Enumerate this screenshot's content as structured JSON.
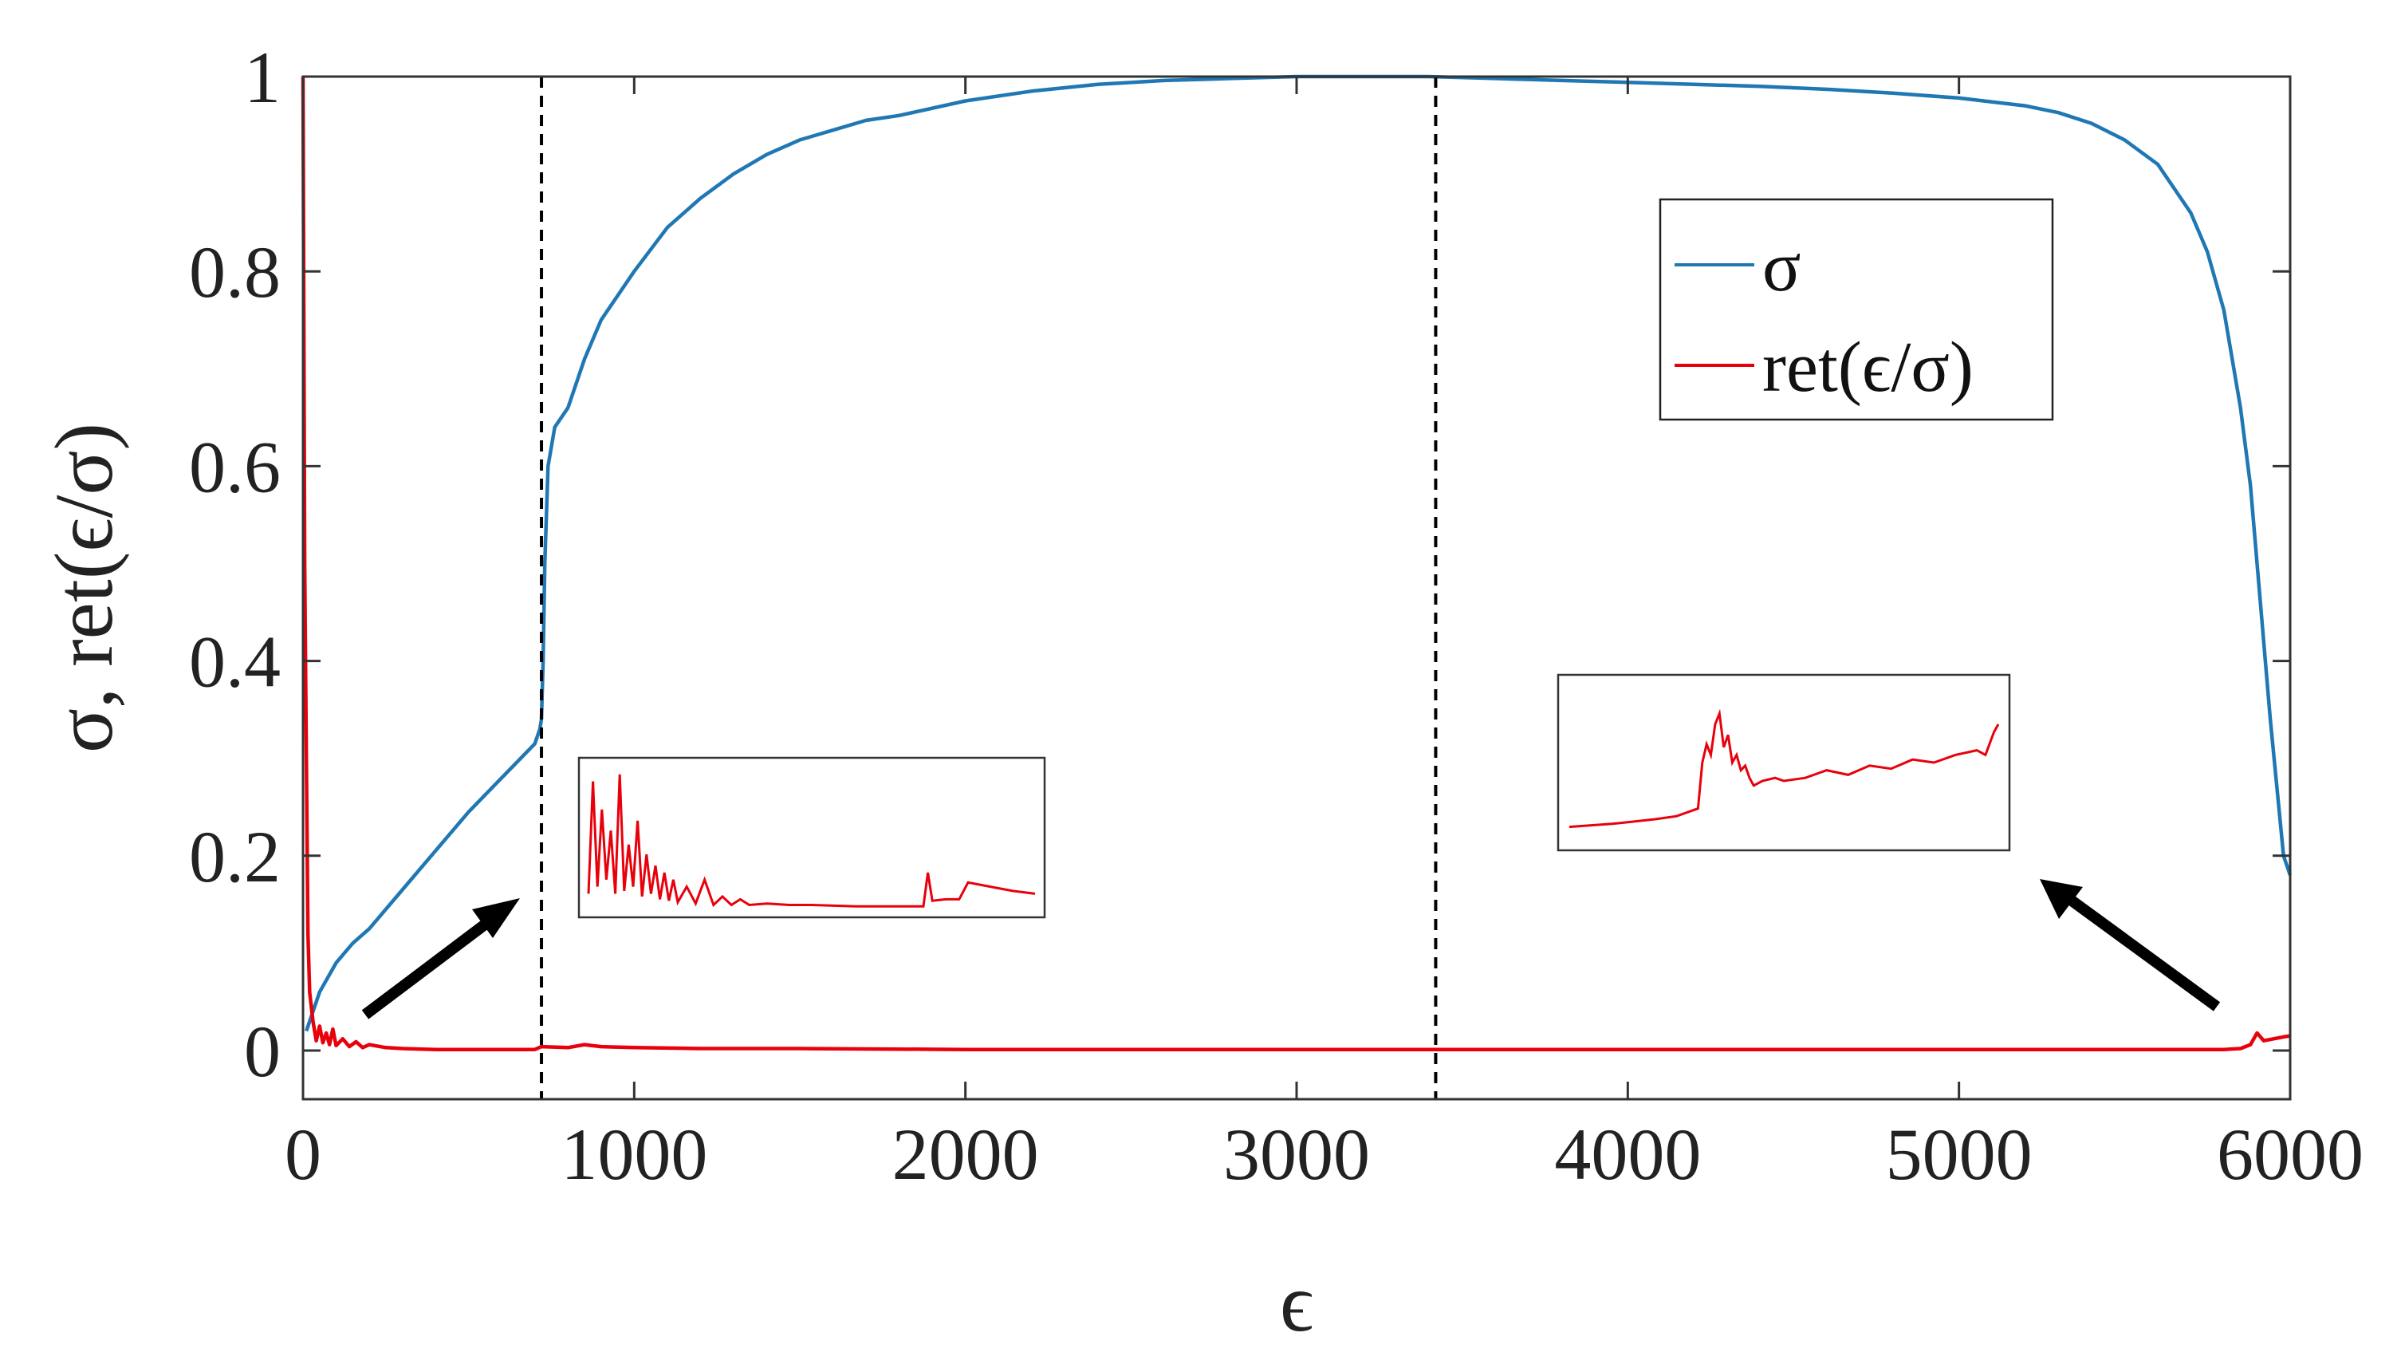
{
  "chart_data": {
    "type": "line",
    "title": "",
    "xlabel": "ϵ",
    "ylabel": "σ, ret(ϵ/σ)",
    "xlim": [
      0,
      6000
    ],
    "ylim": [
      -0.05,
      1.0
    ],
    "x_ticks": [
      0,
      1000,
      2000,
      3000,
      4000,
      5000,
      6000
    ],
    "x_tick_labels": [
      "0",
      "1000",
      "2000",
      "3000",
      "4000",
      "5000",
      "6000"
    ],
    "y_ticks": [
      0,
      0.2,
      0.4,
      0.6,
      0.8,
      1
    ],
    "y_tick_labels": [
      "0",
      "0.2",
      "0.4",
      "0.6",
      "0.8",
      "1"
    ],
    "grid": false,
    "legend_placement": "top-right",
    "series": [
      {
        "name": "σ",
        "color": "#1f77b4",
        "x": [
          10,
          30,
          50,
          100,
          150,
          200,
          300,
          400,
          500,
          600,
          700,
          715,
          720,
          725,
          730,
          740,
          760,
          800,
          850,
          900,
          1000,
          1100,
          1200,
          1300,
          1400,
          1500,
          1600,
          1700,
          1800,
          2000,
          2200,
          2400,
          2600,
          2800,
          3000,
          3200,
          3400,
          3600,
          3800,
          4000,
          4200,
          4400,
          4600,
          4800,
          5000,
          5200,
          5300,
          5400,
          5500,
          5600,
          5700,
          5750,
          5800,
          5850,
          5880,
          5900,
          5920,
          5940,
          5960,
          5980,
          6000
        ],
        "y": [
          0.02,
          0.04,
          0.06,
          0.09,
          0.11,
          0.125,
          0.165,
          0.205,
          0.245,
          0.28,
          0.315,
          0.33,
          0.34,
          0.4,
          0.5,
          0.6,
          0.64,
          0.66,
          0.71,
          0.75,
          0.8,
          0.845,
          0.875,
          0.9,
          0.92,
          0.935,
          0.945,
          0.955,
          0.96,
          0.975,
          0.985,
          0.992,
          0.996,
          0.998,
          1.0,
          1.0,
          1.0,
          0.998,
          0.996,
          0.994,
          0.992,
          0.99,
          0.987,
          0.983,
          0.978,
          0.97,
          0.963,
          0.952,
          0.935,
          0.91,
          0.86,
          0.82,
          0.76,
          0.66,
          0.58,
          0.5,
          0.42,
          0.34,
          0.27,
          0.2,
          0.18
        ]
      },
      {
        "name": "ret(ϵ/σ)",
        "color": "#e8000b",
        "x": [
          0,
          5,
          10,
          15,
          20,
          30,
          40,
          50,
          60,
          70,
          80,
          90,
          100,
          120,
          140,
          160,
          180,
          200,
          250,
          300,
          400,
          500,
          600,
          700,
          720,
          800,
          850,
          900,
          1000,
          1200,
          1500,
          2000,
          2500,
          3000,
          3500,
          4000,
          4500,
          5000,
          5500,
          5800,
          5850,
          5880,
          5900,
          5920,
          5950,
          5980,
          6000
        ],
        "y": [
          1.0,
          0.5,
          0.3,
          0.12,
          0.06,
          0.03,
          0.01,
          0.025,
          0.008,
          0.018,
          0.006,
          0.022,
          0.005,
          0.012,
          0.004,
          0.009,
          0.003,
          0.006,
          0.003,
          0.002,
          0.001,
          0.001,
          0.001,
          0.001,
          0.004,
          0.003,
          0.006,
          0.004,
          0.003,
          0.002,
          0.002,
          0.001,
          0.001,
          0.001,
          0.001,
          0.001,
          0.001,
          0.001,
          0.001,
          0.001,
          0.002,
          0.006,
          0.018,
          0.01,
          0.012,
          0.014,
          0.015
        ]
      }
    ],
    "reference_lines_x": [
      720,
      3420
    ],
    "insets": [
      {
        "series": "ret(ϵ/σ)",
        "color": "#e8000b",
        "x": [
          0,
          1,
          2,
          3,
          4,
          5,
          6,
          7,
          8,
          9,
          10,
          11,
          12,
          13,
          14,
          15,
          16,
          17,
          18,
          19,
          20,
          22,
          24,
          26,
          28,
          30,
          32,
          34,
          36,
          40,
          45,
          50,
          55,
          60,
          65,
          70,
          75,
          76,
          77,
          80,
          83,
          84,
          85,
          90,
          95,
          100
        ],
        "y": [
          0.1,
          0.9,
          0.15,
          0.7,
          0.2,
          0.55,
          0.1,
          0.95,
          0.12,
          0.45,
          0.15,
          0.62,
          0.08,
          0.38,
          0.1,
          0.3,
          0.06,
          0.25,
          0.05,
          0.2,
          0.04,
          0.15,
          0.03,
          0.2,
          0.02,
          0.08,
          0.02,
          0.06,
          0.02,
          0.03,
          0.02,
          0.02,
          0.015,
          0.01,
          0.01,
          0.01,
          0.01,
          0.25,
          0.05,
          0.06,
          0.06,
          0.12,
          0.18,
          0.15,
          0.12,
          0.1
        ]
      },
      {
        "series": "ret(ϵ/σ)",
        "color": "#e8000b",
        "x": [
          0,
          10,
          20,
          25,
          30,
          31,
          32,
          33,
          34,
          35,
          36,
          37,
          38,
          39,
          40,
          41,
          42,
          43,
          45,
          48,
          50,
          55,
          60,
          65,
          70,
          75,
          80,
          85,
          90,
          95,
          97,
          99,
          100
        ],
        "y": [
          0.08,
          0.1,
          0.13,
          0.15,
          0.2,
          0.5,
          0.62,
          0.55,
          0.75,
          0.82,
          0.6,
          0.68,
          0.5,
          0.55,
          0.45,
          0.48,
          0.4,
          0.35,
          0.38,
          0.4,
          0.38,
          0.4,
          0.45,
          0.42,
          0.48,
          0.46,
          0.52,
          0.5,
          0.55,
          0.58,
          0.55,
          0.7,
          0.75
        ]
      }
    ]
  }
}
